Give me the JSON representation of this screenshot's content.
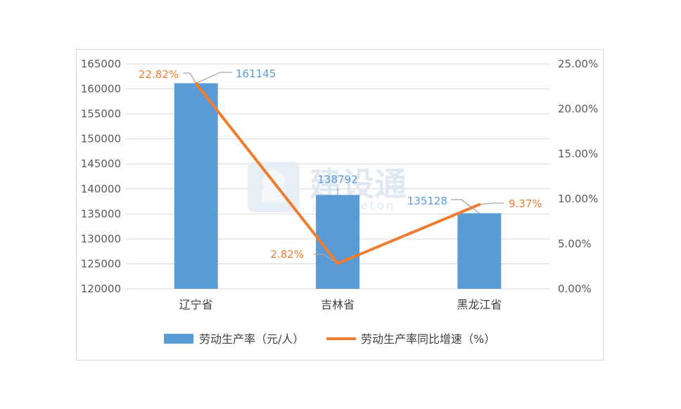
{
  "chart_data": {
    "type": "bar",
    "categories": [
      "辽宁省",
      "吉林省",
      "黑龙江省"
    ],
    "series": [
      {
        "name": "劳动生产率（元/人）",
        "type": "bar",
        "axis": "left",
        "values": [
          161145,
          138792,
          135128
        ],
        "color": "#5b9bd5"
      },
      {
        "name": "劳动生产率同比增速（%）",
        "type": "line",
        "axis": "right",
        "values": [
          22.82,
          2.82,
          9.37
        ],
        "color": "#ed7d31"
      }
    ],
    "bar_labels": [
      "161145",
      "138792",
      "135128"
    ],
    "line_labels": [
      "22.82%",
      "2.82%",
      "9.37%"
    ],
    "y_left": {
      "min": 120000,
      "max": 165000,
      "step": 5000,
      "ticks": [
        "120000",
        "125000",
        "130000",
        "135000",
        "140000",
        "145000",
        "150000",
        "155000",
        "160000",
        "165000"
      ]
    },
    "y_right": {
      "min": 0,
      "max": 25,
      "step": 5,
      "ticks": [
        "0.00%",
        "5.00%",
        "10.00%",
        "15.00%",
        "20.00%",
        "25.00%"
      ]
    },
    "grid": true,
    "legend_position": "bottom"
  },
  "watermark": {
    "title": "建设通",
    "subtitle": "jiansheton"
  },
  "colors": {
    "bar": "#5b9bd5",
    "line": "#ed7d31",
    "grid": "#d9d9d9",
    "leader": "#a6a6a6"
  }
}
